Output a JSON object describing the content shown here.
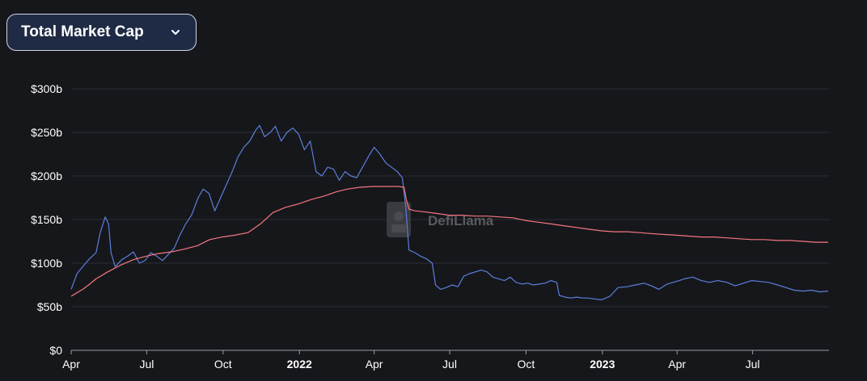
{
  "metric_selector": {
    "label": "Total Market Cap",
    "icon": "chevron-down-icon"
  },
  "watermark": "DefiLlama",
  "chart_data": {
    "type": "line",
    "title": "",
    "xlabel": "",
    "ylabel": "",
    "ylim": [
      0,
      300
    ],
    "y_ticks": [
      {
        "value": 0,
        "label": "$0"
      },
      {
        "value": 50,
        "label": "$50b"
      },
      {
        "value": 100,
        "label": "$100b"
      },
      {
        "value": 150,
        "label": "$150b"
      },
      {
        "value": 200,
        "label": "$200b"
      },
      {
        "value": 250,
        "label": "$250b"
      },
      {
        "value": 300,
        "label": "$300b"
      }
    ],
    "x_range": [
      "2021-04-01",
      "2023-10-01"
    ],
    "x_ticks": [
      {
        "date": "2021-04-01",
        "label": "Apr",
        "bold": false
      },
      {
        "date": "2021-07-01",
        "label": "Jul",
        "bold": false
      },
      {
        "date": "2021-10-01",
        "label": "Oct",
        "bold": false
      },
      {
        "date": "2022-01-01",
        "label": "2022",
        "bold": true
      },
      {
        "date": "2022-04-01",
        "label": "Apr",
        "bold": false
      },
      {
        "date": "2022-07-01",
        "label": "Jul",
        "bold": false
      },
      {
        "date": "2022-10-01",
        "label": "Oct",
        "bold": false
      },
      {
        "date": "2023-01-01",
        "label": "2023",
        "bold": true
      },
      {
        "date": "2023-04-01",
        "label": "Apr",
        "bold": false
      },
      {
        "date": "2023-07-01",
        "label": "Jul",
        "bold": false
      }
    ],
    "grid": true,
    "legend": "none",
    "series": [
      {
        "color": "#5b7fdb",
        "points": [
          [
            "2021-04-01",
            70
          ],
          [
            "2021-04-08",
            88
          ],
          [
            "2021-04-15",
            96
          ],
          [
            "2021-04-22",
            104
          ],
          [
            "2021-05-01",
            112
          ],
          [
            "2021-05-06",
            135
          ],
          [
            "2021-05-12",
            153
          ],
          [
            "2021-05-16",
            145
          ],
          [
            "2021-05-19",
            112
          ],
          [
            "2021-05-24",
            96
          ],
          [
            "2021-06-01",
            104
          ],
          [
            "2021-06-08",
            108
          ],
          [
            "2021-06-15",
            113
          ],
          [
            "2021-06-22",
            100
          ],
          [
            "2021-06-29",
            103
          ],
          [
            "2021-07-06",
            112
          ],
          [
            "2021-07-13",
            108
          ],
          [
            "2021-07-20",
            103
          ],
          [
            "2021-07-27",
            110
          ],
          [
            "2021-08-03",
            117
          ],
          [
            "2021-08-10",
            132
          ],
          [
            "2021-08-17",
            145
          ],
          [
            "2021-08-24",
            155
          ],
          [
            "2021-09-01",
            175
          ],
          [
            "2021-09-07",
            185
          ],
          [
            "2021-09-14",
            180
          ],
          [
            "2021-09-21",
            160
          ],
          [
            "2021-09-28",
            175
          ],
          [
            "2021-10-05",
            190
          ],
          [
            "2021-10-12",
            205
          ],
          [
            "2021-10-19",
            222
          ],
          [
            "2021-10-26",
            233
          ],
          [
            "2021-11-02",
            240
          ],
          [
            "2021-11-09",
            252
          ],
          [
            "2021-11-14",
            258
          ],
          [
            "2021-11-20",
            245
          ],
          [
            "2021-11-27",
            250
          ],
          [
            "2021-12-03",
            257
          ],
          [
            "2021-12-10",
            240
          ],
          [
            "2021-12-17",
            250
          ],
          [
            "2021-12-24",
            255
          ],
          [
            "2021-12-31",
            248
          ],
          [
            "2022-01-07",
            230
          ],
          [
            "2022-01-14",
            240
          ],
          [
            "2022-01-21",
            205
          ],
          [
            "2022-01-28",
            200
          ],
          [
            "2022-02-04",
            210
          ],
          [
            "2022-02-11",
            208
          ],
          [
            "2022-02-18",
            195
          ],
          [
            "2022-02-25",
            205
          ],
          [
            "2022-03-04",
            200
          ],
          [
            "2022-03-11",
            198
          ],
          [
            "2022-03-18",
            210
          ],
          [
            "2022-03-25",
            222
          ],
          [
            "2022-04-01",
            233
          ],
          [
            "2022-04-08",
            225
          ],
          [
            "2022-04-15",
            215
          ],
          [
            "2022-04-22",
            210
          ],
          [
            "2022-04-29",
            205
          ],
          [
            "2022-05-05",
            198
          ],
          [
            "2022-05-09",
            165
          ],
          [
            "2022-05-13",
            115
          ],
          [
            "2022-05-20",
            112
          ],
          [
            "2022-05-27",
            108
          ],
          [
            "2022-06-03",
            105
          ],
          [
            "2022-06-10",
            100
          ],
          [
            "2022-06-14",
            75
          ],
          [
            "2022-06-20",
            70
          ],
          [
            "2022-06-27",
            72
          ],
          [
            "2022-07-04",
            75
          ],
          [
            "2022-07-11",
            73
          ],
          [
            "2022-07-18",
            85
          ],
          [
            "2022-07-25",
            88
          ],
          [
            "2022-08-01",
            90
          ],
          [
            "2022-08-08",
            92
          ],
          [
            "2022-08-15",
            90
          ],
          [
            "2022-08-22",
            84
          ],
          [
            "2022-08-29",
            82
          ],
          [
            "2022-09-05",
            80
          ],
          [
            "2022-09-12",
            84
          ],
          [
            "2022-09-19",
            78
          ],
          [
            "2022-09-26",
            76
          ],
          [
            "2022-10-03",
            77
          ],
          [
            "2022-10-10",
            75
          ],
          [
            "2022-10-17",
            76
          ],
          [
            "2022-10-24",
            77
          ],
          [
            "2022-10-31",
            80
          ],
          [
            "2022-11-07",
            78
          ],
          [
            "2022-11-10",
            63
          ],
          [
            "2022-11-17",
            61
          ],
          [
            "2022-11-24",
            60
          ],
          [
            "2022-12-01",
            61
          ],
          [
            "2022-12-08",
            60
          ],
          [
            "2022-12-15",
            60
          ],
          [
            "2022-12-22",
            59
          ],
          [
            "2022-12-31",
            58
          ],
          [
            "2023-01-10",
            62
          ],
          [
            "2023-01-20",
            72
          ],
          [
            "2023-01-31",
            73
          ],
          [
            "2023-02-10",
            75
          ],
          [
            "2023-02-20",
            77
          ],
          [
            "2023-03-01",
            74
          ],
          [
            "2023-03-10",
            70
          ],
          [
            "2023-03-20",
            76
          ],
          [
            "2023-03-31",
            79
          ],
          [
            "2023-04-10",
            82
          ],
          [
            "2023-04-20",
            84
          ],
          [
            "2023-04-30",
            80
          ],
          [
            "2023-05-10",
            78
          ],
          [
            "2023-05-20",
            80
          ],
          [
            "2023-05-31",
            78
          ],
          [
            "2023-06-10",
            74
          ],
          [
            "2023-06-20",
            77
          ],
          [
            "2023-06-30",
            80
          ],
          [
            "2023-07-10",
            79
          ],
          [
            "2023-07-20",
            78
          ],
          [
            "2023-07-31",
            75
          ],
          [
            "2023-08-10",
            72
          ],
          [
            "2023-08-20",
            69
          ],
          [
            "2023-08-31",
            68
          ],
          [
            "2023-09-10",
            69
          ],
          [
            "2023-09-20",
            67
          ],
          [
            "2023-09-30",
            68
          ]
        ]
      },
      {
        "color": "#f4777f",
        "points": [
          [
            "2021-04-01",
            62
          ],
          [
            "2021-04-08",
            66
          ],
          [
            "2021-04-15",
            70
          ],
          [
            "2021-04-22",
            75
          ],
          [
            "2021-05-01",
            82
          ],
          [
            "2021-05-15",
            90
          ],
          [
            "2021-05-31",
            98
          ],
          [
            "2021-06-15",
            104
          ],
          [
            "2021-06-30",
            108
          ],
          [
            "2021-07-15",
            111
          ],
          [
            "2021-07-31",
            113
          ],
          [
            "2021-08-15",
            116
          ],
          [
            "2021-08-31",
            120
          ],
          [
            "2021-09-15",
            127
          ],
          [
            "2021-09-30",
            130
          ],
          [
            "2021-10-15",
            132
          ],
          [
            "2021-10-31",
            135
          ],
          [
            "2021-11-15",
            145
          ],
          [
            "2021-11-30",
            158
          ],
          [
            "2021-12-15",
            164
          ],
          [
            "2021-12-31",
            168
          ],
          [
            "2022-01-15",
            173
          ],
          [
            "2022-01-31",
            177
          ],
          [
            "2022-02-15",
            182
          ],
          [
            "2022-02-28",
            185
          ],
          [
            "2022-03-15",
            187
          ],
          [
            "2022-03-31",
            188
          ],
          [
            "2022-04-15",
            188
          ],
          [
            "2022-04-30",
            188
          ],
          [
            "2022-05-07",
            187
          ],
          [
            "2022-05-10",
            172
          ],
          [
            "2022-05-13",
            162
          ],
          [
            "2022-05-20",
            160
          ],
          [
            "2022-05-31",
            159
          ],
          [
            "2022-06-15",
            157
          ],
          [
            "2022-06-30",
            155
          ],
          [
            "2022-07-15",
            155
          ],
          [
            "2022-07-31",
            154
          ],
          [
            "2022-08-15",
            154
          ],
          [
            "2022-08-31",
            153
          ],
          [
            "2022-09-15",
            152
          ],
          [
            "2022-09-30",
            149
          ],
          [
            "2022-10-15",
            147
          ],
          [
            "2022-10-31",
            145
          ],
          [
            "2022-11-15",
            143
          ],
          [
            "2022-11-30",
            141
          ],
          [
            "2022-12-15",
            139
          ],
          [
            "2022-12-31",
            137
          ],
          [
            "2023-01-15",
            136
          ],
          [
            "2023-01-31",
            136
          ],
          [
            "2023-02-15",
            135
          ],
          [
            "2023-02-28",
            134
          ],
          [
            "2023-03-15",
            133
          ],
          [
            "2023-03-31",
            132
          ],
          [
            "2023-04-15",
            131
          ],
          [
            "2023-04-30",
            130
          ],
          [
            "2023-05-15",
            130
          ],
          [
            "2023-05-31",
            129
          ],
          [
            "2023-06-15",
            128
          ],
          [
            "2023-06-30",
            127
          ],
          [
            "2023-07-15",
            127
          ],
          [
            "2023-07-31",
            126
          ],
          [
            "2023-08-15",
            126
          ],
          [
            "2023-08-31",
            125
          ],
          [
            "2023-09-15",
            124
          ],
          [
            "2023-09-30",
            124
          ]
        ]
      }
    ]
  }
}
